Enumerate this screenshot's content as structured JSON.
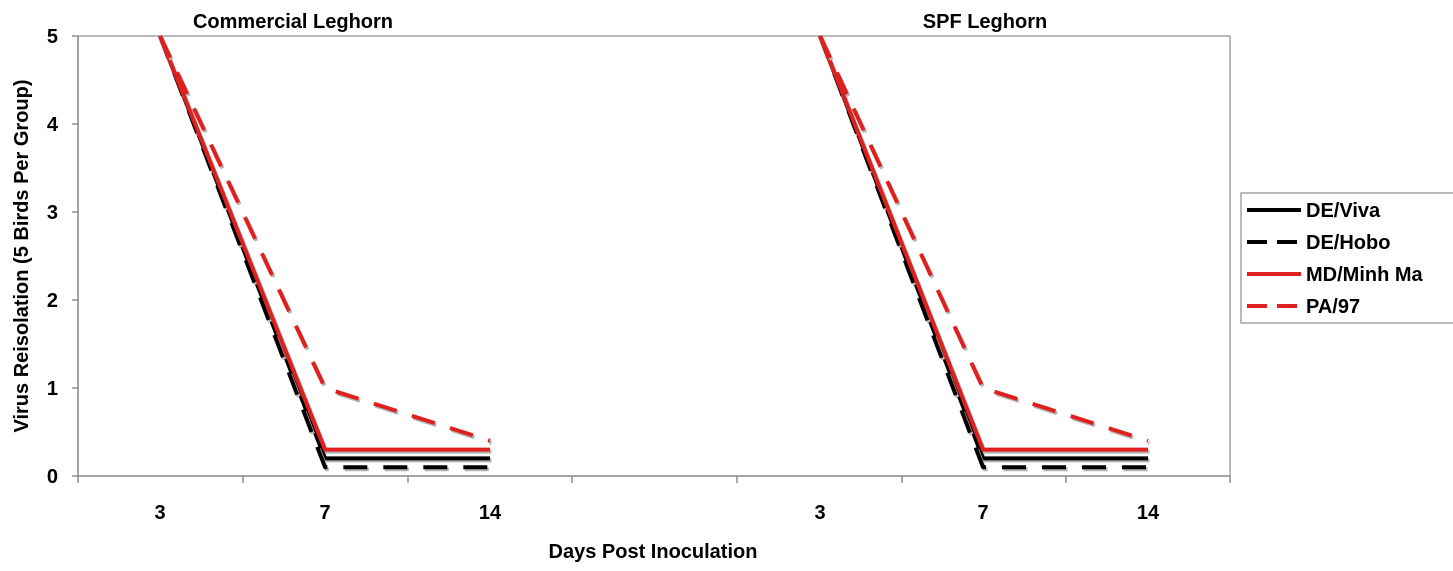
{
  "chart_data": {
    "type": "line",
    "xlabel": "Days Post Inoculation",
    "ylabel": "Virus Reisolation (5 Birds Per Group)",
    "ylim": [
      0,
      5
    ],
    "yticks": [
      0,
      1,
      2,
      3,
      4,
      5
    ],
    "grid": false,
    "legend_position": "right",
    "legend": [
      "DE/Viva",
      "DE/Hobo",
      "MD/Minh Ma",
      "PA/97"
    ],
    "panels": [
      {
        "title": "Commercial Leghorn",
        "categories": [
          "3",
          "7",
          "14"
        ],
        "series": [
          {
            "name": "DE/Viva",
            "values": [
              5,
              0.2,
              0.2
            ],
            "color": "#000000",
            "dash": "solid"
          },
          {
            "name": "DE/Hobo",
            "values": [
              5,
              0.1,
              0.1
            ],
            "color": "#000000",
            "dash": "dashed"
          },
          {
            "name": "MD/Minh Ma",
            "values": [
              5,
              0.3,
              0.3
            ],
            "color": "#e0201e",
            "dash": "solid"
          },
          {
            "name": "PA/97",
            "values": [
              5,
              1.0,
              0.4
            ],
            "color": "#e0201e",
            "dash": "dashed"
          }
        ]
      },
      {
        "title": "SPF Leghorn",
        "categories": [
          "3",
          "7",
          "14"
        ],
        "series": [
          {
            "name": "DE/Viva",
            "values": [
              5,
              0.2,
              0.2
            ],
            "color": "#000000",
            "dash": "solid"
          },
          {
            "name": "DE/Hobo",
            "values": [
              5,
              0.1,
              0.1
            ],
            "color": "#000000",
            "dash": "dashed"
          },
          {
            "name": "MD/Minh Ma",
            "values": [
              5,
              0.3,
              0.3
            ],
            "color": "#e0201e",
            "dash": "solid"
          },
          {
            "name": "PA/97",
            "values": [
              5,
              1.0,
              0.4
            ],
            "color": "#e0201e",
            "dash": "dashed"
          }
        ]
      }
    ]
  }
}
